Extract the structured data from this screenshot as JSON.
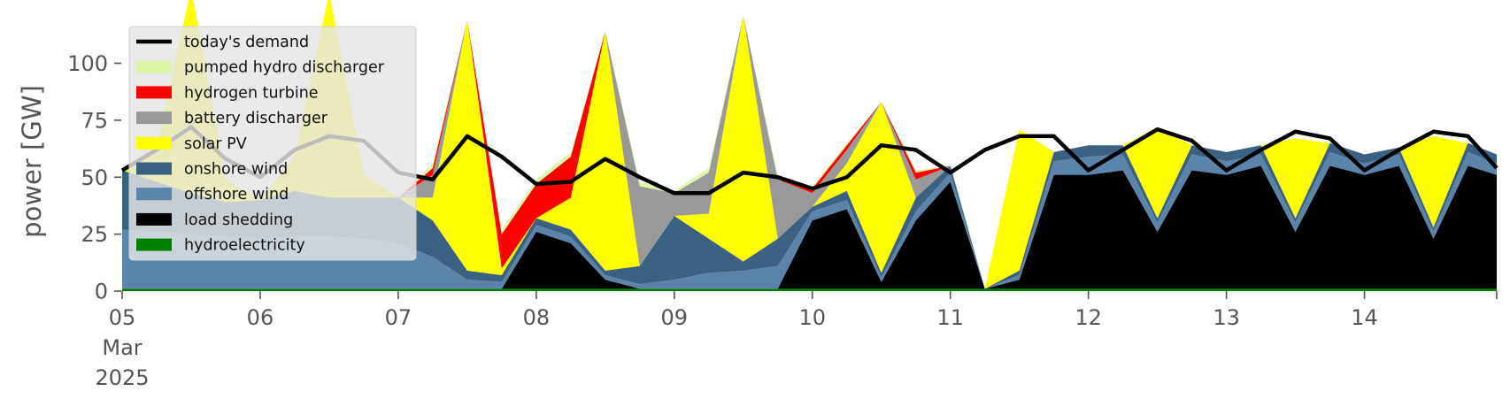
{
  "chart_data": {
    "type": "area",
    "title": "",
    "xlabel": "",
    "ylabel": "power [GW]",
    "ylim": [
      0,
      120
    ],
    "xlim": [
      "2025-03-05T00:00",
      "2025-03-14T23:00"
    ],
    "yticks": [
      0,
      25,
      50,
      75,
      100
    ],
    "grid": false,
    "legend_position": "top-left",
    "x_tick_labels": [
      {
        "date": "2025-03-05",
        "lines": [
          "05",
          "Mar",
          "2025"
        ]
      },
      {
        "date": "2025-03-06",
        "lines": [
          "06"
        ]
      },
      {
        "date": "2025-03-07",
        "lines": [
          "07"
        ]
      },
      {
        "date": "2025-03-08",
        "lines": [
          "08"
        ]
      },
      {
        "date": "2025-03-09",
        "lines": [
          "09"
        ]
      },
      {
        "date": "2025-03-10",
        "lines": [
          "10"
        ]
      },
      {
        "date": "2025-03-11",
        "lines": [
          "11"
        ]
      },
      {
        "date": "2025-03-12",
        "lines": [
          "12"
        ]
      },
      {
        "date": "2025-03-13",
        "lines": [
          "13"
        ]
      },
      {
        "date": "2025-03-14",
        "lines": [
          "14"
        ]
      }
    ],
    "x": [
      "2025-03-05T00:00",
      "2025-03-05T06:00",
      "2025-03-05T12:00",
      "2025-03-05T18:00",
      "2025-03-06T00:00",
      "2025-03-06T06:00",
      "2025-03-06T12:00",
      "2025-03-06T18:00",
      "2025-03-07T00:00",
      "2025-03-07T06:00",
      "2025-03-07T12:00",
      "2025-03-07T18:00",
      "2025-03-08T00:00",
      "2025-03-08T06:00",
      "2025-03-08T12:00",
      "2025-03-08T18:00",
      "2025-03-09T00:00",
      "2025-03-09T06:00",
      "2025-03-09T12:00",
      "2025-03-09T18:00",
      "2025-03-10T00:00",
      "2025-03-10T06:00",
      "2025-03-10T12:00",
      "2025-03-10T18:00",
      "2025-03-11T00:00",
      "2025-03-11T06:00",
      "2025-03-11T12:00",
      "2025-03-11T18:00",
      "2025-03-12T00:00",
      "2025-03-12T06:00",
      "2025-03-12T12:00",
      "2025-03-12T18:00",
      "2025-03-13T00:00",
      "2025-03-13T06:00",
      "2025-03-13T12:00",
      "2025-03-13T18:00",
      "2025-03-14T00:00",
      "2025-03-14T06:00",
      "2025-03-14T12:00",
      "2025-03-14T18:00",
      "2025-03-14T23:00"
    ],
    "series": [
      {
        "name": "hydroelectricity",
        "color": "#008000",
        "values": [
          1,
          1,
          1,
          1,
          1,
          1,
          1,
          1,
          1,
          1,
          1,
          1,
          1,
          1,
          1,
          1,
          1,
          1,
          1,
          1,
          1,
          1,
          1,
          1,
          1,
          1,
          1,
          1,
          1,
          1,
          1,
          1,
          1,
          1,
          1,
          1,
          1,
          1,
          1,
          1,
          1
        ]
      },
      {
        "name": "load shedding",
        "color": "#000000",
        "values": [
          0,
          0,
          0,
          0,
          0,
          0,
          0,
          0,
          0,
          0,
          0,
          0,
          25,
          20,
          4,
          0,
          0,
          0,
          0,
          0,
          30,
          35,
          3,
          30,
          47,
          0,
          4,
          50,
          50,
          52,
          25,
          52,
          50,
          54,
          25,
          54,
          50,
          54,
          22,
          54,
          50
        ]
      },
      {
        "name": "offshore wind",
        "color": "#5b84aa",
        "values": [
          26,
          25,
          24,
          23,
          22,
          23,
          23,
          22,
          20,
          14,
          4,
          3,
          3,
          3,
          2,
          2,
          4,
          7,
          8,
          10,
          4,
          4,
          2,
          4,
          4,
          0,
          2,
          6,
          8,
          7,
          4,
          7,
          6,
          5,
          4,
          6,
          5,
          5,
          3,
          6,
          5
        ]
      },
      {
        "name": "onshore wind",
        "color": "#3b6182",
        "values": [
          26,
          22,
          18,
          15,
          17,
          20,
          17,
          18,
          20,
          16,
          4,
          3,
          3,
          3,
          2,
          8,
          28,
          15,
          4,
          12,
          2,
          4,
          2,
          6,
          3,
          0,
          2,
          4,
          5,
          4,
          2,
          4,
          4,
          4,
          2,
          4,
          4,
          3,
          2,
          4,
          4
        ]
      },
      {
        "name": "solar PV",
        "color": "#ffff00",
        "values": [
          0,
          15,
          90,
          10,
          0,
          15,
          90,
          10,
          0,
          10,
          110,
          3,
          0,
          14,
          105,
          0,
          0,
          11,
          108,
          0,
          0,
          12,
          75,
          0,
          0,
          0,
          62,
          0,
          0,
          0,
          40,
          0,
          0,
          0,
          35,
          0,
          0,
          0,
          40,
          0,
          0
        ]
      },
      {
        "name": "battery discharger",
        "color": "#999999",
        "values": [
          0,
          0,
          0,
          0,
          0,
          0,
          0,
          0,
          0,
          10,
          0,
          0,
          0,
          0,
          0,
          35,
          10,
          18,
          0,
          26,
          6,
          6,
          0,
          8,
          0,
          0,
          0,
          0,
          0,
          0,
          0,
          0,
          0,
          0,
          0,
          0,
          0,
          0,
          0,
          0,
          0
        ]
      },
      {
        "name": "hydrogen turbine",
        "color": "#ff0000",
        "values": [
          0,
          0,
          0,
          0,
          0,
          0,
          0,
          0,
          0,
          3,
          0,
          15,
          15,
          18,
          0,
          0,
          0,
          0,
          0,
          0,
          2,
          2,
          0,
          3,
          0,
          0,
          0,
          0,
          0,
          0,
          0,
          0,
          0,
          0,
          0,
          0,
          0,
          0,
          0,
          0,
          0
        ]
      },
      {
        "name": "pumped hydro discharger",
        "color": "#dcf7a8",
        "values": [
          0,
          0,
          0,
          0,
          0,
          0,
          0,
          0,
          0,
          2,
          0,
          2,
          2,
          2,
          0,
          2,
          1,
          2,
          0,
          2,
          1,
          1,
          0,
          1,
          0,
          0,
          0,
          0,
          0,
          0,
          0,
          0,
          0,
          0,
          0,
          0,
          0,
          0,
          0,
          0,
          0
        ]
      }
    ],
    "demand": {
      "name": "today's demand",
      "color": "#000000",
      "values": [
        53,
        62,
        72,
        58,
        50,
        62,
        68,
        66,
        52,
        49,
        68,
        59,
        47,
        48,
        58,
        50,
        43,
        43,
        52,
        50,
        45,
        50,
        64,
        62,
        52,
        62,
        68,
        68,
        53,
        62,
        71,
        66,
        53,
        62,
        70,
        67,
        53,
        62,
        70,
        68,
        54
      ]
    },
    "legend_order": [
      "today's demand",
      "pumped hydro discharger",
      "hydrogen turbine",
      "battery discharger",
      "solar PV",
      "onshore wind",
      "offshore wind",
      "load shedding",
      "hydroelectricity"
    ]
  }
}
